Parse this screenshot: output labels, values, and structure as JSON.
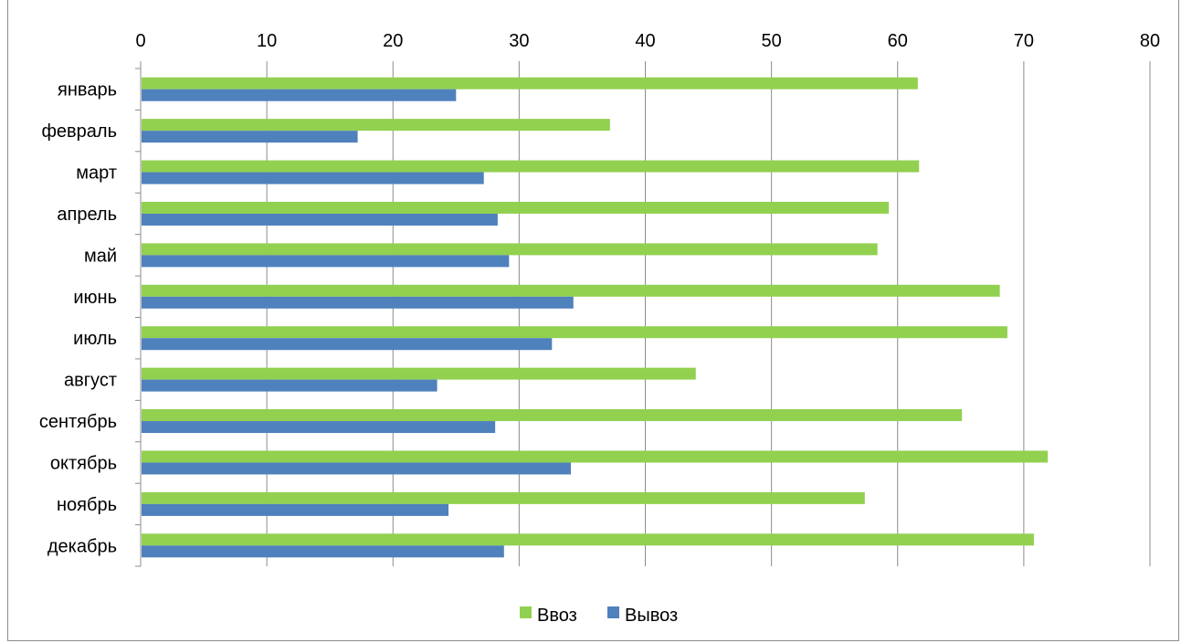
{
  "chart_data": {
    "type": "bar",
    "orientation": "horizontal",
    "categories": [
      "январь",
      "февраль",
      "март",
      "апрель",
      "май",
      "июнь",
      "июль",
      "август",
      "сентябрь",
      "октябрь",
      "ноябрь",
      "декабрь"
    ],
    "series": [
      {
        "name": "Ввоз",
        "color": "#92d050",
        "values": [
          61.6,
          37.2,
          61.7,
          59.3,
          58.4,
          68.1,
          68.7,
          44.0,
          65.1,
          71.9,
          57.4,
          70.8
        ]
      },
      {
        "name": "Вывоз",
        "color": "#4f81bd",
        "values": [
          25.0,
          17.2,
          27.2,
          28.3,
          29.2,
          34.3,
          32.6,
          23.5,
          28.1,
          34.1,
          24.4,
          28.8
        ]
      }
    ],
    "xlim": [
      0,
      80
    ],
    "xticks": [
      "0",
      "10",
      "20",
      "30",
      "40",
      "50",
      "60",
      "70",
      "80"
    ],
    "x_axis_position": "top",
    "grid": true,
    "legend": "bottom"
  }
}
